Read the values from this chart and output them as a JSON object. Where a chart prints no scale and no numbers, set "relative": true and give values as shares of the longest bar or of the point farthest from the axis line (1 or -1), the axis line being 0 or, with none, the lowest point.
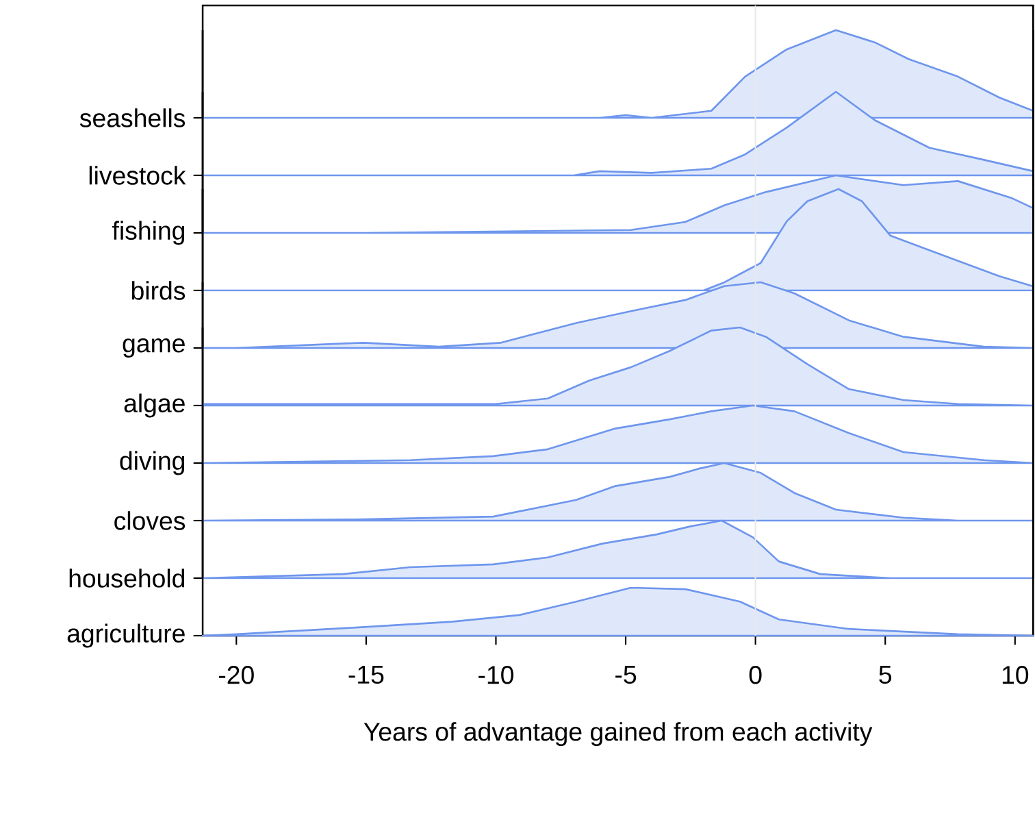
{
  "chart_data": [
    {
      "type": "area",
      "relative": true,
      "ylabel": "seashells",
      "xlim": [
        -21.3,
        10.7
      ],
      "tick_labels": false,
      "color": "#dfe8fb",
      "x": [
        -21.3,
        -6,
        -5,
        -4,
        -1.7,
        -0.4,
        1.2,
        3.1,
        4.6,
        5.9,
        7.8,
        9.4,
        10.7
      ],
      "values": [
        0,
        0,
        0.03,
        0,
        0.08,
        0.47,
        0.78,
        1,
        0.86,
        0.67,
        0.47,
        0.23,
        0.08
      ]
    },
    {
      "type": "area",
      "relative": true,
      "ylabel": "livestock",
      "xlim": [
        -21.3,
        10.7
      ],
      "tick_labels": false,
      "color": "#dfe8fb",
      "x": [
        -21.3,
        -7,
        -6,
        -4,
        -1.7,
        -0.4,
        1.2,
        3.1,
        4.6,
        6.7,
        8.6,
        10.7
      ],
      "values": [
        0,
        0,
        0.05,
        0.03,
        0.08,
        0.25,
        0.57,
        1,
        0.66,
        0.33,
        0.2,
        0.05
      ]
    },
    {
      "type": "area",
      "relative": true,
      "ylabel": "fishing",
      "xlim": [
        -21.3,
        10.7
      ],
      "tick_labels": false,
      "color": "#dfe8fb",
      "x": [
        -21.3,
        -15,
        -4.8,
        -2.7,
        -1.2,
        0.4,
        3.1,
        5.7,
        7.8,
        9.9,
        10.7
      ],
      "values": [
        0,
        0,
        0.05,
        0.19,
        0.48,
        0.71,
        1,
        0.83,
        0.9,
        0.6,
        0.43
      ]
    },
    {
      "type": "area",
      "relative": true,
      "ylabel": "birds",
      "xlim": [
        -21.3,
        10.7
      ],
      "tick_labels": false,
      "color": "#dfe8fb",
      "x": [
        -21.3,
        -2,
        -1.2,
        0.2,
        1.2,
        2.0,
        3.2,
        4.1,
        5.2,
        7.3,
        9.4,
        10.7
      ],
      "values": [
        0,
        0,
        0.08,
        0.27,
        0.68,
        0.88,
        1,
        0.88,
        0.54,
        0.34,
        0.14,
        0.04
      ]
    },
    {
      "type": "area",
      "relative": true,
      "ylabel": "game",
      "xlim": [
        -21.3,
        10.7
      ],
      "tick_labels": false,
      "color": "#dfe8fb",
      "x": [
        -21.3,
        -20,
        -15.1,
        -12.2,
        -9.8,
        -6.9,
        -4.8,
        -2.7,
        -1.2,
        0.2,
        1.5,
        3.6,
        5.7,
        8.8,
        10.7
      ],
      "values": [
        0,
        0,
        0.08,
        0.02,
        0.08,
        0.38,
        0.56,
        0.73,
        0.94,
        1,
        0.83,
        0.42,
        0.17,
        0.02,
        0
      ]
    },
    {
      "type": "area",
      "relative": true,
      "ylabel": "algae",
      "xlim": [
        -21.3,
        10.7
      ],
      "tick_labels": false,
      "color": "#dfe8fb",
      "x": [
        -21.3,
        -10,
        -8,
        -6.4,
        -4.8,
        -3.3,
        -1.7,
        -0.6,
        0.4,
        2,
        3.6,
        5.7,
        7.8,
        10.7
      ],
      "values": [
        0.02,
        0.02,
        0.09,
        0.32,
        0.49,
        0.7,
        0.96,
        1,
        0.88,
        0.53,
        0.21,
        0.07,
        0.02,
        0
      ]
    },
    {
      "type": "area",
      "relative": true,
      "ylabel": "diving",
      "xlim": [
        -21.3,
        10.7
      ],
      "tick_labels": false,
      "color": "#dfe8fb",
      "x": [
        -21.3,
        -13.3,
        -10.1,
        -8,
        -5.4,
        -3.3,
        -1.7,
        -0.1,
        1.5,
        3.6,
        5.7,
        8.8,
        10.7
      ],
      "values": [
        0,
        0.05,
        0.12,
        0.24,
        0.6,
        0.76,
        0.9,
        1,
        0.9,
        0.52,
        0.19,
        0.05,
        0
      ]
    },
    {
      "type": "area",
      "relative": true,
      "ylabel": "cloves",
      "xlim": [
        -21.3,
        10.7
      ],
      "tick_labels": false,
      "color": "#dfe8fb",
      "x": [
        -21.3,
        -15.4,
        -10.1,
        -6.9,
        -5.4,
        -3.3,
        -2.2,
        -1.2,
        0.2,
        1.5,
        3.1,
        5.7,
        7.8,
        10.7
      ],
      "values": [
        0,
        0.02,
        0.07,
        0.36,
        0.6,
        0.76,
        0.9,
        1,
        0.83,
        0.48,
        0.19,
        0.05,
        0,
        0
      ]
    },
    {
      "type": "area",
      "relative": true,
      "ylabel": "household",
      "xlim": [
        -21.3,
        10.7
      ],
      "tick_labels": false,
      "color": "#dfe8fb",
      "x": [
        -21.3,
        -15.9,
        -13.3,
        -10.1,
        -8,
        -5.9,
        -3.8,
        -2.5,
        -1.3,
        -0.1,
        0.9,
        2.5,
        5.2,
        10.7
      ],
      "values": [
        0,
        0.07,
        0.19,
        0.24,
        0.36,
        0.6,
        0.76,
        0.9,
        1,
        0.71,
        0.29,
        0.07,
        0,
        0
      ]
    },
    {
      "type": "area",
      "relative": true,
      "ylabel": "agriculture",
      "xlabel": "Years of advantage gained from each activity",
      "xlim": [
        -21.3,
        10.7
      ],
      "xticks": [
        -20,
        -15,
        -10,
        -5,
        0,
        5,
        10
      ],
      "tick_labels": "x",
      "ref_lines": [
        {
          "axis": "x",
          "value": 0,
          "color": "#e8e8e8"
        }
      ],
      "color": "#dfe8fb",
      "x": [
        -21.3,
        -20,
        -15.4,
        -11.7,
        -9.1,
        -6.9,
        -4.8,
        -2.7,
        -0.6,
        0.9,
        3.6,
        7.8,
        10.7
      ],
      "values": [
        0,
        0.03,
        0.17,
        0.29,
        0.43,
        0.71,
        1,
        0.97,
        0.71,
        0.34,
        0.14,
        0.03,
        0
      ]
    }
  ]
}
